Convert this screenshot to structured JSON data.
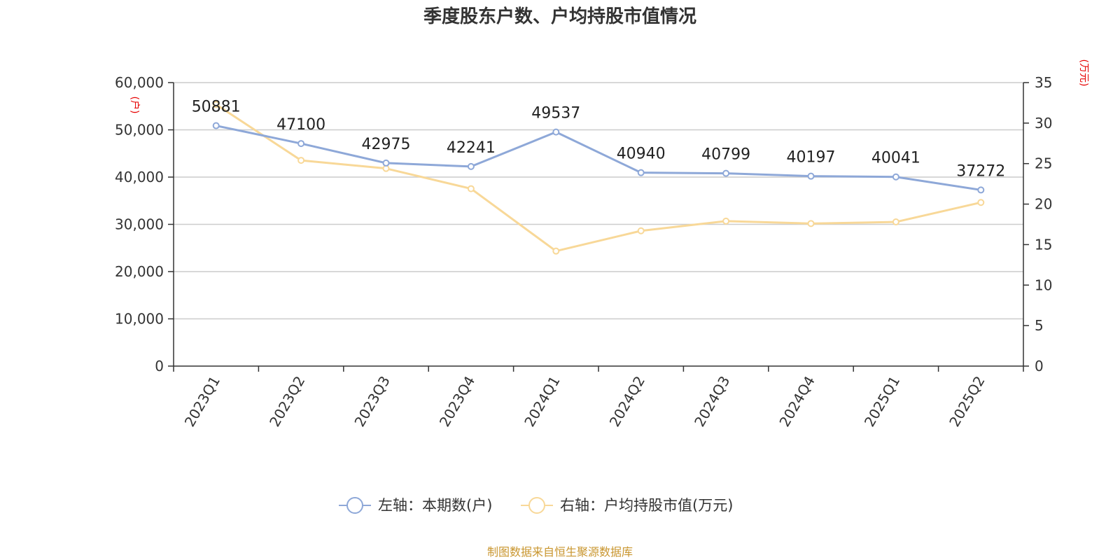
{
  "chart_data": {
    "type": "line",
    "title": "季度股东户数、户均持股市值情况",
    "categories": [
      "2023Q1",
      "2023Q2",
      "2023Q3",
      "2023Q4",
      "2024Q1",
      "2024Q2",
      "2024Q3",
      "2024Q4",
      "2025Q1",
      "2025Q2"
    ],
    "left_axis": {
      "unit": "(户)",
      "min": 0,
      "max": 60000,
      "ticks": [
        "0",
        "10,000",
        "20,000",
        "30,000",
        "40,000",
        "50,000",
        "60,000"
      ]
    },
    "right_axis": {
      "unit": "(万元)",
      "min": 0,
      "max": 35,
      "ticks": [
        "0",
        "5",
        "10",
        "15",
        "20",
        "25",
        "30",
        "35"
      ]
    },
    "series": [
      {
        "name": "左轴：本期数(户)",
        "axis": "left",
        "color": "#8ea8d8",
        "values": [
          50881,
          47100,
          42975,
          42241,
          49537,
          40940,
          40799,
          40197,
          40041,
          37272
        ],
        "labels": [
          "50881",
          "47100",
          "42975",
          "42241",
          "49537",
          "40940",
          "40799",
          "40197",
          "40041",
          "37272"
        ]
      },
      {
        "name": "右轴：户均持股市值(万元)",
        "axis": "right",
        "color": "#f8d898",
        "values": [
          32.3,
          25.4,
          24.4,
          21.9,
          14.2,
          16.7,
          17.9,
          17.6,
          17.8,
          20.2
        ]
      }
    ],
    "grid": true,
    "legend_position": "bottom-center",
    "source": "制图数据来自恒生聚源数据库"
  }
}
